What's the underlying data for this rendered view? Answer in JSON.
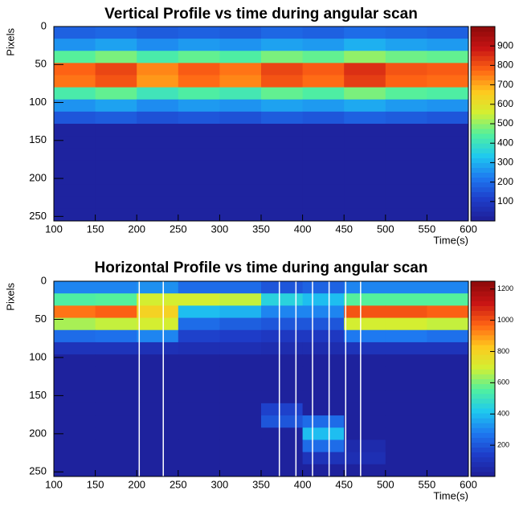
{
  "chart_data": [
    {
      "type": "heatmap",
      "title": "Vertical Profile vs time during angular scan",
      "xlabel": "Time(s)",
      "ylabel": "Pixels",
      "xlim": [
        100,
        600
      ],
      "ylim": [
        0,
        256
      ],
      "y_inverted": true,
      "xticks": [
        100,
        150,
        200,
        250,
        300,
        350,
        400,
        450,
        500,
        550,
        600
      ],
      "yticks": [
        0,
        50,
        100,
        150,
        200,
        250
      ],
      "x_bins": [
        100,
        150,
        200,
        250,
        300,
        350,
        400,
        450,
        500,
        550,
        600
      ],
      "y_bins": [
        0,
        16,
        32,
        48,
        64,
        80,
        96,
        112,
        128,
        144,
        160,
        176,
        192,
        208,
        224,
        240,
        256
      ],
      "zlim": [
        0,
        1000
      ],
      "zticks": [
        100,
        200,
        300,
        400,
        500,
        600,
        700,
        800,
        900
      ],
      "colormap": [
        "#1e1e96",
        "#1e3cc8",
        "#1e78f0",
        "#1ec8f0",
        "#50f0a0",
        "#d2f032",
        "#ffc81e",
        "#ff6414",
        "#c81414",
        "#8c0a0a"
      ],
      "z": [
        [
          180,
          190,
          170,
          180,
          170,
          190,
          180,
          200,
          190,
          180
        ],
        [
          260,
          280,
          250,
          270,
          260,
          280,
          270,
          300,
          280,
          270
        ],
        [
          450,
          480,
          430,
          460,
          440,
          480,
          460,
          500,
          470,
          460
        ],
        [
          780,
          820,
          740,
          790,
          760,
          820,
          790,
          850,
          800,
          790
        ],
        [
          760,
          800,
          720,
          770,
          740,
          800,
          770,
          830,
          780,
          770
        ],
        [
          430,
          460,
          410,
          440,
          420,
          460,
          440,
          480,
          450,
          440
        ],
        [
          260,
          280,
          250,
          270,
          260,
          280,
          270,
          290,
          270,
          260
        ],
        [
          160,
          170,
          150,
          160,
          150,
          170,
          160,
          180,
          170,
          160
        ],
        [
          20,
          20,
          20,
          20,
          20,
          20,
          20,
          20,
          20,
          20
        ],
        [
          20,
          20,
          20,
          20,
          20,
          20,
          20,
          20,
          20,
          20
        ],
        [
          20,
          20,
          20,
          20,
          20,
          20,
          20,
          20,
          20,
          20
        ],
        [
          20,
          20,
          20,
          20,
          20,
          20,
          20,
          20,
          20,
          20
        ],
        [
          20,
          20,
          20,
          20,
          20,
          20,
          20,
          20,
          20,
          20
        ],
        [
          20,
          20,
          20,
          20,
          20,
          20,
          20,
          20,
          20,
          20
        ],
        [
          20,
          20,
          20,
          20,
          20,
          20,
          20,
          20,
          20,
          20
        ],
        [
          20,
          20,
          20,
          20,
          20,
          20,
          20,
          20,
          20,
          20
        ]
      ]
    },
    {
      "type": "heatmap",
      "title": "Horizontal Profile vs time during angular scan",
      "xlabel": "Time(s)",
      "ylabel": "Pixels",
      "xlim": [
        100,
        600
      ],
      "ylim": [
        0,
        256
      ],
      "y_inverted": true,
      "xticks": [
        100,
        150,
        200,
        250,
        300,
        350,
        400,
        450,
        500,
        550,
        600
      ],
      "yticks": [
        0,
        50,
        100,
        150,
        200,
        250
      ],
      "x_bins": [
        100,
        150,
        200,
        250,
        300,
        350,
        400,
        450,
        500,
        550,
        600
      ],
      "y_bins": [
        0,
        16,
        32,
        48,
        64,
        80,
        96,
        112,
        128,
        144,
        160,
        176,
        192,
        208,
        224,
        240,
        256
      ],
      "zlim": [
        0,
        1250
      ],
      "zticks": [
        200,
        400,
        600,
        800,
        1000,
        1200
      ],
      "colormap": [
        "#1e1e96",
        "#1e3cc8",
        "#1e78f0",
        "#1ec8f0",
        "#50f0a0",
        "#d2f032",
        "#ffc81e",
        "#ff6414",
        "#c81414",
        "#8c0a0a"
      ],
      "vlines": [
        203,
        232,
        372,
        392,
        412,
        432,
        452,
        470
      ],
      "z": [
        [
          300,
          300,
          320,
          250,
          250,
          200,
          230,
          300,
          300,
          300
        ],
        [
          550,
          560,
          700,
          700,
          680,
          450,
          400,
          560,
          560,
          560
        ],
        [
          950,
          980,
          800,
          400,
          380,
          300,
          300,
          1000,
          1000,
          980
        ],
        [
          650,
          680,
          700,
          250,
          220,
          200,
          200,
          700,
          700,
          680
        ],
        [
          250,
          260,
          300,
          150,
          140,
          120,
          120,
          280,
          280,
          260
        ],
        [
          100,
          100,
          90,
          80,
          80,
          70,
          70,
          100,
          100,
          100
        ],
        [
          20,
          20,
          20,
          20,
          20,
          20,
          20,
          20,
          20,
          20
        ],
        [
          20,
          20,
          20,
          20,
          20,
          20,
          20,
          20,
          20,
          20
        ],
        [
          20,
          20,
          20,
          20,
          20,
          20,
          20,
          20,
          20,
          20
        ],
        [
          20,
          20,
          20,
          20,
          20,
          20,
          20,
          20,
          20,
          20
        ],
        [
          20,
          20,
          20,
          20,
          20,
          150,
          20,
          20,
          20,
          20
        ],
        [
          20,
          20,
          20,
          20,
          20,
          200,
          250,
          20,
          20,
          20
        ],
        [
          20,
          20,
          20,
          20,
          20,
          20,
          400,
          20,
          20,
          20
        ],
        [
          20,
          20,
          20,
          20,
          20,
          20,
          250,
          60,
          20,
          20
        ],
        [
          20,
          20,
          20,
          20,
          20,
          20,
          100,
          80,
          20,
          20
        ],
        [
          20,
          20,
          20,
          20,
          20,
          20,
          20,
          20,
          20,
          20
        ]
      ]
    }
  ]
}
